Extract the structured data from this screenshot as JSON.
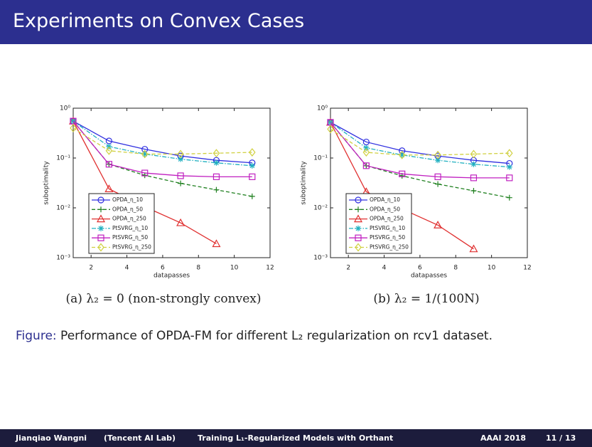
{
  "slide": {
    "title": "Experiments on Convex Cases",
    "figure_label": "Figure:",
    "caption": "Performance of OPDA-FM for different L₂ regularization on rcv1 dataset.",
    "footer": {
      "author": "Jianqiao Wangni",
      "affiliation": "(Tencent AI Lab)",
      "talk": "Training L₁-Regularized Models with Orthant",
      "venue": "AAAI 2018",
      "page": "11 / 13"
    }
  },
  "chart_data": [
    {
      "type": "line",
      "subcaption": "(a) λ₂ = 0 (non-strongly convex)",
      "xlabel": "datapasses",
      "ylabel": "suboptimality",
      "log_y": true,
      "legend": "lower left",
      "xlim": [
        1,
        12
      ],
      "xticks": [
        2,
        4,
        6,
        8,
        10,
        12
      ],
      "ylim": [
        0.001,
        1
      ],
      "yticks": [
        {
          "value": 0.001,
          "label": "10⁻³"
        },
        {
          "value": 0.01,
          "label": "10⁻²"
        },
        {
          "value": 0.1,
          "label": "10⁻¹"
        },
        {
          "value": 1,
          "label": "10⁰"
        }
      ],
      "series": [
        {
          "name": "OPDA_η_10",
          "color": "#3030e0",
          "marker": "o",
          "linestyle": "solid",
          "x": [
            1,
            3,
            5,
            7,
            9,
            11
          ],
          "values": [
            0.55,
            0.22,
            0.15,
            0.11,
            0.09,
            0.08
          ]
        },
        {
          "name": "OPDA_η_50",
          "color": "#208020",
          "marker": "+",
          "linestyle": "dashed",
          "x": [
            1,
            3,
            5,
            7,
            9,
            11
          ],
          "values": [
            0.55,
            0.075,
            0.045,
            0.031,
            0.023,
            0.017
          ]
        },
        {
          "name": "OPDA_η_250",
          "color": "#e03030",
          "marker": "^",
          "linestyle": "solid",
          "x": [
            1,
            3,
            5,
            7,
            9
          ],
          "values": [
            0.55,
            0.024,
            0.0105,
            0.005,
            0.0019
          ]
        },
        {
          "name": "PtSVRG_η_10",
          "color": "#20b0c0",
          "marker": "*",
          "linestyle": "dashdot",
          "x": [
            1,
            3,
            5,
            7,
            9,
            11
          ],
          "values": [
            0.55,
            0.17,
            0.12,
            0.095,
            0.08,
            0.07
          ]
        },
        {
          "name": "PtSVRG_η_50",
          "color": "#c020c0",
          "marker": "s",
          "linestyle": "solid",
          "x": [
            1,
            3,
            5,
            7,
            9,
            11
          ],
          "values": [
            0.55,
            0.075,
            0.05,
            0.044,
            0.042,
            0.042
          ]
        },
        {
          "name": "PtSVRG_η_250",
          "color": "#d0d040",
          "marker": "d",
          "linestyle": "dashed",
          "x": [
            1,
            3,
            5,
            7,
            9,
            11
          ],
          "values": [
            0.4,
            0.14,
            0.12,
            0.12,
            0.125,
            0.13
          ]
        }
      ]
    },
    {
      "type": "line",
      "subcaption": "(b) λ₂ = 1/(100N)",
      "xlabel": "datapasses",
      "ylabel": "suboptimality",
      "log_y": true,
      "legend": "lower left",
      "xlim": [
        1,
        12
      ],
      "xticks": [
        2,
        4,
        6,
        8,
        10,
        12
      ],
      "ylim": [
        0.001,
        1
      ],
      "yticks": [
        {
          "value": 0.001,
          "label": "10⁻³"
        },
        {
          "value": 0.01,
          "label": "10⁻²"
        },
        {
          "value": 0.1,
          "label": "10⁻¹"
        },
        {
          "value": 1,
          "label": "10⁰"
        }
      ],
      "series": [
        {
          "name": "OPDA_η_10",
          "color": "#3030e0",
          "marker": "o",
          "linestyle": "solid",
          "x": [
            1,
            3,
            5,
            7,
            9,
            11
          ],
          "values": [
            0.52,
            0.21,
            0.14,
            0.11,
            0.09,
            0.078
          ]
        },
        {
          "name": "OPDA_η_50",
          "color": "#208020",
          "marker": "+",
          "linestyle": "dashed",
          "x": [
            1,
            3,
            5,
            7,
            9,
            11
          ],
          "values": [
            0.52,
            0.07,
            0.044,
            0.03,
            0.022,
            0.016
          ]
        },
        {
          "name": "OPDA_η_250",
          "color": "#e03030",
          "marker": "^",
          "linestyle": "solid",
          "x": [
            1,
            3,
            5,
            7,
            9
          ],
          "values": [
            0.52,
            0.021,
            0.0095,
            0.0045,
            0.0015
          ]
        },
        {
          "name": "PtSVRG_η_10",
          "color": "#20b0c0",
          "marker": "*",
          "linestyle": "dashdot",
          "x": [
            1,
            3,
            5,
            7,
            9,
            11
          ],
          "values": [
            0.52,
            0.16,
            0.115,
            0.09,
            0.075,
            0.066
          ]
        },
        {
          "name": "PtSVRG_η_50",
          "color": "#c020c0",
          "marker": "s",
          "linestyle": "solid",
          "x": [
            1,
            3,
            5,
            7,
            9,
            11
          ],
          "values": [
            0.52,
            0.07,
            0.048,
            0.042,
            0.04,
            0.04
          ]
        },
        {
          "name": "PtSVRG_η_250",
          "color": "#d0d040",
          "marker": "d",
          "linestyle": "dashed",
          "x": [
            1,
            3,
            5,
            7,
            9,
            11
          ],
          "values": [
            0.38,
            0.13,
            0.115,
            0.115,
            0.12,
            0.125
          ]
        }
      ]
    }
  ]
}
